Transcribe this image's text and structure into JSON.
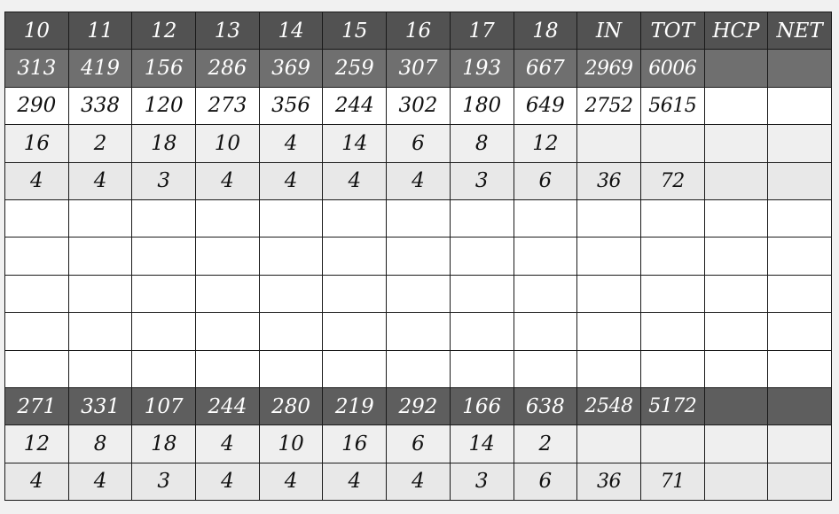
{
  "scorecard": {
    "header": [
      "10",
      "11",
      "12",
      "13",
      "14",
      "15",
      "16",
      "17",
      "18",
      "IN",
      "TOT",
      "HCP",
      "NET"
    ],
    "rows": [
      {
        "style": "dark",
        "name": "yardage-back-tees",
        "cells": [
          "313",
          "419",
          "156",
          "286",
          "369",
          "259",
          "307",
          "193",
          "667",
          "2969",
          "6006",
          "",
          ""
        ]
      },
      {
        "style": "white",
        "name": "yardage-middle-tees",
        "cells": [
          "290",
          "338",
          "120",
          "273",
          "356",
          "244",
          "302",
          "180",
          "649",
          "2752",
          "5615",
          "",
          ""
        ]
      },
      {
        "style": "light",
        "name": "handicap-men",
        "cells": [
          "16",
          "2",
          "18",
          "10",
          "4",
          "14",
          "6",
          "8",
          "12",
          "",
          "",
          "",
          ""
        ]
      },
      {
        "style": "lighter",
        "name": "par-men",
        "cells": [
          "4",
          "4",
          "3",
          "4",
          "4",
          "4",
          "4",
          "3",
          "6",
          "36",
          "72",
          "",
          ""
        ]
      },
      {
        "style": "blank",
        "name": "player-score-1",
        "cells": [
          "",
          "",
          "",
          "",
          "",
          "",
          "",
          "",
          "",
          "",
          "",
          "",
          ""
        ]
      },
      {
        "style": "blank",
        "name": "player-score-2",
        "cells": [
          "",
          "",
          "",
          "",
          "",
          "",
          "",
          "",
          "",
          "",
          "",
          "",
          ""
        ]
      },
      {
        "style": "blank",
        "name": "player-score-3",
        "cells": [
          "",
          "",
          "",
          "",
          "",
          "",
          "",
          "",
          "",
          "",
          "",
          "",
          ""
        ]
      },
      {
        "style": "blank",
        "name": "player-score-4",
        "cells": [
          "",
          "",
          "",
          "",
          "",
          "",
          "",
          "",
          "",
          "",
          "",
          "",
          ""
        ]
      },
      {
        "style": "blank",
        "name": "player-score-5",
        "cells": [
          "",
          "",
          "",
          "",
          "",
          "",
          "",
          "",
          "",
          "",
          "",
          "",
          ""
        ]
      },
      {
        "style": "dark2",
        "name": "yardage-forward-tees",
        "cells": [
          "271",
          "331",
          "107",
          "244",
          "280",
          "219",
          "292",
          "166",
          "638",
          "2548",
          "5172",
          "",
          ""
        ]
      },
      {
        "style": "light",
        "name": "handicap-women",
        "cells": [
          "12",
          "8",
          "18",
          "4",
          "10",
          "16",
          "6",
          "14",
          "2",
          "",
          "",
          "",
          ""
        ]
      },
      {
        "style": "lighter",
        "name": "par-women",
        "cells": [
          "4",
          "4",
          "3",
          "4",
          "4",
          "4",
          "4",
          "3",
          "6",
          "36",
          "71",
          "",
          ""
        ]
      }
    ]
  }
}
